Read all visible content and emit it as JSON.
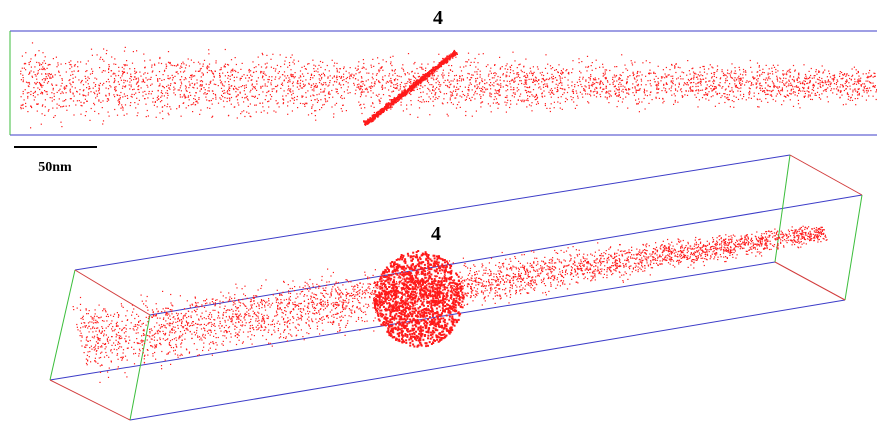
{
  "panels": [
    {
      "label": "4"
    },
    {
      "label": "4"
    }
  ],
  "scale_bar": {
    "label": "50nm"
  }
}
